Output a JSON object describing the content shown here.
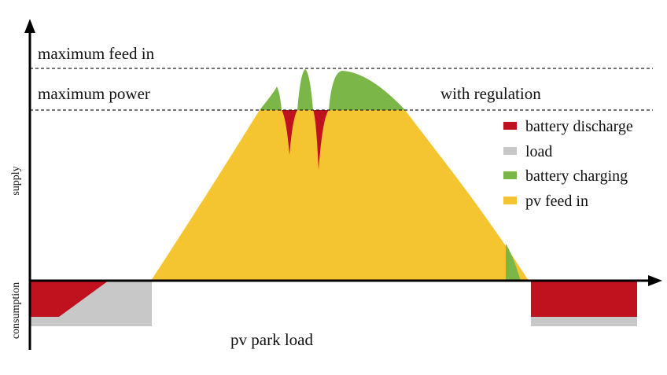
{
  "labels": {
    "maximum_feed_in": "maximum feed in",
    "maximum_power": "maximum power",
    "with_regulation": "with regulation",
    "pv_park_load": "pv park load",
    "supply": "supply",
    "consumption": "consumption"
  },
  "legend": [
    "battery discharge",
    "load",
    "battery charging",
    "pv feed in"
  ]
}
